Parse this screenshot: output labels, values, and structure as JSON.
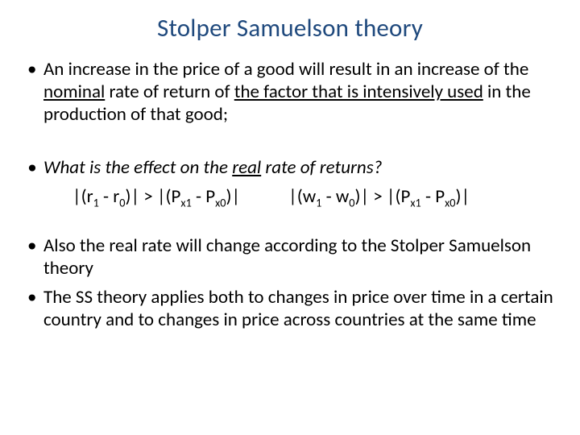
{
  "title_color": "#1f497d",
  "title": "Stolper Samuelson theory",
  "bullet1": {
    "pre": "An increase in the price of a good will result in an increase of the ",
    "u1": "nominal",
    "mid": " rate of return of ",
    "u2": "the factor that is intensively used",
    "post": " in the production of that good;"
  },
  "bullet2": {
    "pre": "What is the effect on the ",
    "u1": "real",
    "post": " rate of returns?"
  },
  "eq1": {
    "open1": "|(r",
    "s1a": "1",
    "mid1": " - r",
    "s1b": "0",
    "close1": ")| > |(P",
    "s1c": "x1",
    "mid2": " - P",
    "s1d": "x0",
    "close2": ")|"
  },
  "eq2": {
    "open1": "|(w",
    "s1a": "1",
    "mid1": " - w",
    "s1b": "0",
    "close1": ")| > |(P",
    "s1c": "x1",
    "mid2": " - P",
    "s1d": "x0",
    "close2": ")|"
  },
  "bullet3": "Also the real rate will change according to the Stolper Samuelson theory",
  "bullet4": "The SS theory applies both to changes in price over time in a certain country and to changes in price across countries at the same time"
}
